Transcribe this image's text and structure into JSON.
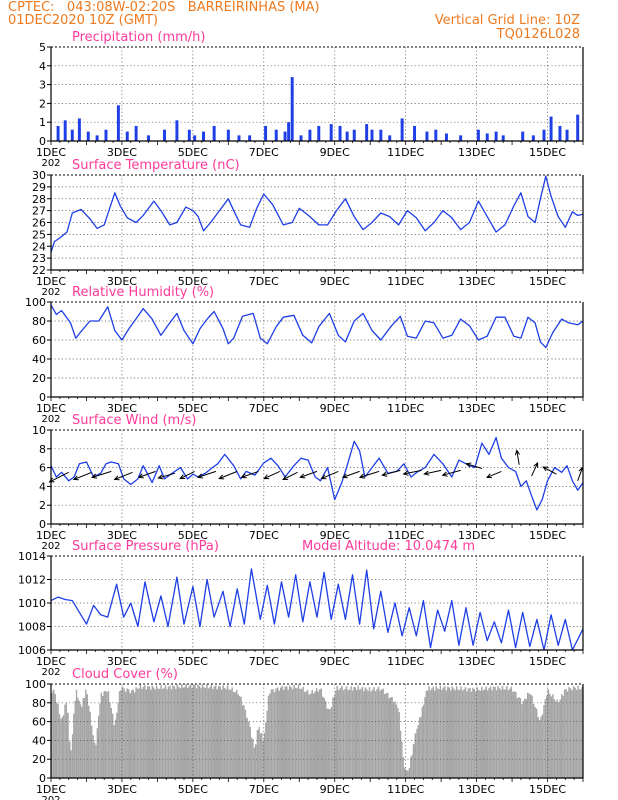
{
  "header": {
    "left_line1": "CPTEC:   043:08W-02:20S   BARREIRINHAS (MA)",
    "left_line2": "01DEC2020 10Z (GMT)",
    "right_line1": "Vertical Grid Line: 10Z",
    "right_line2": "TQ0126L028"
  },
  "colors": {
    "header": "#ee7a1f",
    "title": "#ff3a9a",
    "series": "#1f3fe6",
    "cloud": "#a6a6a6",
    "wind_arrow": "#000000"
  },
  "chart_data": [
    {
      "id": "precipitation",
      "type": "bar",
      "title": "Precipitation (mm/h)",
      "ylim": [
        0,
        5
      ],
      "yticks": [
        "0",
        "1",
        "2",
        "3",
        "4",
        "5"
      ],
      "xticks": [
        "1DEC",
        "3DEC",
        "5DEC",
        "7DEC",
        "9DEC",
        "11DEC",
        "13DEC",
        "15DEC"
      ],
      "xtick_sub": "202",
      "grid": true,
      "bar_width_hours": 2,
      "x": [
        1.2,
        1.4,
        1.6,
        1.8,
        2.05,
        2.3,
        2.55,
        2.9,
        3.15,
        3.4,
        3.75,
        4.2,
        4.55,
        4.9,
        5.05,
        5.3,
        5.6,
        6.0,
        6.3,
        6.6,
        7.05,
        7.35,
        7.6,
        7.7,
        7.8,
        8.05,
        8.3,
        8.55,
        8.9,
        9.15,
        9.35,
        9.55,
        9.9,
        10.05,
        10.3,
        10.55,
        10.9,
        11.25,
        11.6,
        11.85,
        12.15,
        12.55,
        13.05,
        13.3,
        13.55,
        13.75,
        14.3,
        14.6,
        14.9,
        15.1,
        15.35,
        15.55,
        15.85
      ],
      "values": [
        0.8,
        1.1,
        0.6,
        1.2,
        0.5,
        0.3,
        0.6,
        1.9,
        0.5,
        0.8,
        0.3,
        0.6,
        1.1,
        0.6,
        0.3,
        0.5,
        0.8,
        0.6,
        0.3,
        0.3,
        0.8,
        0.6,
        0.5,
        1.0,
        3.4,
        0.3,
        0.6,
        0.8,
        0.9,
        0.8,
        0.5,
        0.6,
        0.9,
        0.6,
        0.6,
        0.3,
        1.2,
        0.8,
        0.5,
        0.6,
        0.4,
        0.3,
        0.6,
        0.4,
        0.5,
        0.3,
        0.5,
        0.3,
        0.6,
        1.3,
        0.8,
        0.6,
        1.4
      ]
    },
    {
      "id": "temperature",
      "type": "line",
      "title": "Surface Temperature (nC)",
      "ylim": [
        22,
        30
      ],
      "yticks": [
        "22",
        "23",
        "24",
        "25",
        "26",
        "27",
        "28",
        "29",
        "30"
      ],
      "xticks": [
        "1DEC",
        "3DEC",
        "5DEC",
        "7DEC",
        "9DEC",
        "11DEC",
        "13DEC",
        "15DEC"
      ],
      "xtick_sub": "202",
      "grid": true,
      "x": [
        1.0,
        1.1,
        1.25,
        1.45,
        1.6,
        1.85,
        2.1,
        2.3,
        2.5,
        2.8,
        2.95,
        3.15,
        3.4,
        3.6,
        3.9,
        4.1,
        4.35,
        4.55,
        4.8,
        5.0,
        5.15,
        5.3,
        5.5,
        5.75,
        6.0,
        6.2,
        6.35,
        6.6,
        6.8,
        7.0,
        7.25,
        7.55,
        7.8,
        8.0,
        8.3,
        8.55,
        8.8,
        9.05,
        9.3,
        9.55,
        9.8,
        10.05,
        10.3,
        10.55,
        10.8,
        11.05,
        11.3,
        11.55,
        11.8,
        12.05,
        12.3,
        12.55,
        12.8,
        13.05,
        13.3,
        13.55,
        13.8,
        14.05,
        14.25,
        14.45,
        14.65,
        14.8,
        14.95,
        15.1,
        15.3,
        15.5,
        15.7,
        15.85,
        16.0
      ],
      "values": [
        23.5,
        24.4,
        24.7,
        25.2,
        26.8,
        27.1,
        26.3,
        25.5,
        25.8,
        28.5,
        27.4,
        26.4,
        26.0,
        26.6,
        27.8,
        27.0,
        25.8,
        26.0,
        27.3,
        27.0,
        26.5,
        25.3,
        26.0,
        27.0,
        28.0,
        26.7,
        25.8,
        25.6,
        27.2,
        28.4,
        27.5,
        25.8,
        26.0,
        27.2,
        26.5,
        25.8,
        25.8,
        27.0,
        28.0,
        26.5,
        25.4,
        26.0,
        26.8,
        26.5,
        25.8,
        27.0,
        26.4,
        25.3,
        26.0,
        27.0,
        26.4,
        25.4,
        26.0,
        27.8,
        26.5,
        25.2,
        25.8,
        27.4,
        28.5,
        26.5,
        26.0,
        28.0,
        29.9,
        28.2,
        26.5,
        25.6,
        26.9,
        26.6,
        26.7
      ]
    },
    {
      "id": "humidity",
      "type": "line",
      "title": "Relative Humidity (%)",
      "ylim": [
        0,
        100
      ],
      "yticks": [
        "0",
        "20",
        "40",
        "60",
        "80",
        "100"
      ],
      "xticks": [
        "1DEC",
        "3DEC",
        "5DEC",
        "7DEC",
        "9DEC",
        "11DEC",
        "13DEC",
        "15DEC"
      ],
      "xtick_sub": "202",
      "grid": true,
      "x": [
        1.0,
        1.15,
        1.3,
        1.55,
        1.7,
        1.85,
        2.1,
        2.35,
        2.6,
        2.8,
        3.0,
        3.2,
        3.45,
        3.6,
        3.85,
        4.1,
        4.35,
        4.55,
        4.75,
        5.0,
        5.2,
        5.4,
        5.6,
        5.85,
        6.0,
        6.15,
        6.4,
        6.7,
        6.9,
        7.1,
        7.35,
        7.55,
        7.85,
        8.1,
        8.35,
        8.55,
        8.85,
        9.1,
        9.3,
        9.55,
        9.8,
        10.05,
        10.3,
        10.6,
        10.85,
        11.05,
        11.3,
        11.55,
        11.8,
        12.05,
        12.3,
        12.55,
        12.8,
        13.05,
        13.3,
        13.55,
        13.8,
        14.05,
        14.25,
        14.45,
        14.65,
        14.8,
        14.95,
        15.15,
        15.4,
        15.6,
        15.85,
        16.0
      ],
      "values": [
        97,
        87,
        91,
        78,
        62,
        69,
        80,
        80,
        95,
        70,
        60,
        72,
        85,
        93,
        82,
        65,
        78,
        88,
        70,
        56,
        72,
        82,
        90,
        72,
        56,
        62,
        85,
        88,
        62,
        56,
        74,
        84,
        86,
        65,
        57,
        74,
        88,
        65,
        58,
        80,
        88,
        70,
        60,
        75,
        85,
        64,
        62,
        80,
        78,
        62,
        65,
        82,
        75,
        60,
        64,
        84,
        84,
        64,
        62,
        84,
        78,
        58,
        52,
        68,
        82,
        78,
        76,
        80
      ]
    },
    {
      "id": "wind",
      "type": "line",
      "title": "Surface Wind (m/s)",
      "ylim": [
        0,
        10
      ],
      "yticks": [
        "0",
        "2",
        "4",
        "6",
        "8",
        "10"
      ],
      "xticks": [
        "1DEC",
        "3DEC",
        "5DEC",
        "7DEC",
        "9DEC",
        "11DEC",
        "13DEC",
        "15DEC"
      ],
      "xtick_sub": "202",
      "grid": true,
      "x": [
        1.0,
        1.15,
        1.3,
        1.5,
        1.65,
        1.8,
        2.0,
        2.2,
        2.4,
        2.55,
        2.7,
        2.9,
        3.05,
        3.25,
        3.45,
        3.6,
        3.85,
        4.05,
        4.2,
        4.45,
        4.65,
        4.85,
        5.0,
        5.15,
        5.35,
        5.55,
        5.7,
        5.9,
        6.15,
        6.35,
        6.5,
        6.75,
        7.0,
        7.2,
        7.4,
        7.6,
        7.85,
        8.05,
        8.25,
        8.45,
        8.6,
        8.8,
        9.0,
        9.2,
        9.35,
        9.55,
        9.7,
        9.85,
        10.05,
        10.25,
        10.5,
        10.75,
        10.95,
        11.15,
        11.35,
        11.55,
        11.8,
        12.05,
        12.3,
        12.5,
        12.7,
        12.95,
        13.15,
        13.35,
        13.55,
        13.7,
        13.9,
        14.1,
        14.25,
        14.4,
        14.55,
        14.7,
        14.85,
        15.0,
        15.2,
        15.4,
        15.55,
        15.7,
        15.85,
        16.0
      ],
      "values": [
        6.2,
        5.0,
        5.5,
        4.6,
        5.0,
        6.4,
        6.6,
        5.0,
        5.4,
        6.4,
        6.6,
        6.4,
        4.8,
        4.2,
        4.8,
        6.2,
        4.4,
        6.2,
        4.8,
        5.5,
        6.0,
        4.8,
        5.3,
        5.0,
        5.4,
        6.0,
        6.4,
        7.4,
        6.2,
        4.8,
        5.6,
        5.2,
        6.5,
        7.0,
        6.2,
        5.0,
        6.2,
        7.0,
        6.8,
        5.0,
        4.6,
        6.0,
        2.6,
        4.4,
        6.2,
        8.8,
        7.8,
        5.0,
        6.0,
        7.0,
        5.4,
        5.6,
        6.4,
        5.0,
        5.6,
        6.0,
        7.4,
        6.4,
        5.0,
        6.8,
        6.4,
        6.0,
        8.6,
        7.4,
        9.2,
        7.0,
        6.0,
        5.6,
        4.0,
        4.6,
        3.0,
        1.5,
        2.6,
        4.6,
        6.0,
        5.5,
        6.2,
        4.6,
        3.6,
        4.4
      ],
      "arrows": [
        {
          "x": 1.5,
          "y": 5.5,
          "u": -1.6,
          "v": -0.8
        },
        {
          "x": 2.15,
          "y": 5.5,
          "u": -1.5,
          "v": -0.6
        },
        {
          "x": 2.7,
          "y": 5.6,
          "u": -1.6,
          "v": -0.5
        },
        {
          "x": 3.3,
          "y": 5.5,
          "u": -1.5,
          "v": -0.6
        },
        {
          "x": 3.95,
          "y": 5.6,
          "u": -1.4,
          "v": -0.5
        },
        {
          "x": 4.5,
          "y": 5.4,
          "u": -1.4,
          "v": -0.4
        },
        {
          "x": 5.05,
          "y": 5.6,
          "u": -1.2,
          "v": -0.6
        },
        {
          "x": 5.65,
          "y": 5.6,
          "u": -1.5,
          "v": -0.5
        },
        {
          "x": 6.25,
          "y": 5.6,
          "u": -1.5,
          "v": -0.6
        },
        {
          "x": 6.85,
          "y": 5.6,
          "u": -1.4,
          "v": -0.5
        },
        {
          "x": 7.45,
          "y": 5.6,
          "u": -1.3,
          "v": -0.6
        },
        {
          "x": 7.95,
          "y": 5.5,
          "u": -1.2,
          "v": -0.6
        },
        {
          "x": 8.5,
          "y": 5.6,
          "u": -1.4,
          "v": -0.5
        },
        {
          "x": 9.1,
          "y": 5.6,
          "u": -1.4,
          "v": -0.6
        },
        {
          "x": 9.7,
          "y": 5.6,
          "u": -1.4,
          "v": -0.5
        },
        {
          "x": 10.25,
          "y": 5.6,
          "u": -1.6,
          "v": -0.5
        },
        {
          "x": 10.85,
          "y": 5.7,
          "u": -1.5,
          "v": -0.4
        },
        {
          "x": 11.45,
          "y": 5.7,
          "u": -1.5,
          "v": -0.3
        },
        {
          "x": 12.0,
          "y": 5.7,
          "u": -1.4,
          "v": -0.3
        },
        {
          "x": 12.55,
          "y": 5.7,
          "u": -1.5,
          "v": -0.4
        },
        {
          "x": 13.15,
          "y": 5.9,
          "u": -1.3,
          "v": 0.4
        },
        {
          "x": 13.7,
          "y": 5.6,
          "u": -1.2,
          "v": -0.5
        },
        {
          "x": 14.2,
          "y": 6.3,
          "u": -0.2,
          "v": 1.2
        },
        {
          "x": 14.55,
          "y": 5.1,
          "u": 0.5,
          "v": 1.1
        },
        {
          "x": 15.25,
          "y": 5.3,
          "u": -1.1,
          "v": 0.6
        },
        {
          "x": 15.85,
          "y": 4.6,
          "u": 0.4,
          "v": 1.1
        }
      ]
    },
    {
      "id": "pressure",
      "type": "line",
      "title": "Surface Pressure (hPa)",
      "annotation": "Model Altitude: 10.0474 m",
      "ylim": [
        1006,
        1014
      ],
      "yticks": [
        "1006",
        "1008",
        "1010",
        "1012",
        "1014"
      ],
      "xticks": [
        "1DEC",
        "3DEC",
        "5DEC",
        "7DEC",
        "9DEC",
        "11DEC",
        "13DEC",
        "15DEC"
      ],
      "xtick_sub": "202",
      "grid": true,
      "x": [
        1.0,
        1.2,
        1.4,
        1.6,
        1.8,
        2.0,
        2.2,
        2.4,
        2.6,
        2.85,
        3.05,
        3.25,
        3.45,
        3.65,
        3.9,
        4.1,
        4.3,
        4.55,
        4.75,
        5.0,
        5.2,
        5.4,
        5.6,
        5.85,
        6.05,
        6.25,
        6.45,
        6.65,
        6.9,
        7.1,
        7.3,
        7.5,
        7.7,
        7.9,
        8.1,
        8.3,
        8.5,
        8.7,
        8.9,
        9.1,
        9.3,
        9.5,
        9.7,
        9.9,
        10.1,
        10.3,
        10.5,
        10.7,
        10.9,
        11.1,
        11.3,
        11.5,
        11.7,
        11.9,
        12.1,
        12.3,
        12.5,
        12.7,
        12.9,
        13.1,
        13.3,
        13.5,
        13.7,
        13.9,
        14.1,
        14.3,
        14.5,
        14.7,
        14.9,
        15.1,
        15.3,
        15.5,
        15.7,
        15.9,
        16.0
      ],
      "values": [
        1010.2,
        1010.5,
        1010.3,
        1010.2,
        1009.2,
        1008.2,
        1009.8,
        1009.0,
        1008.8,
        1011.6,
        1008.8,
        1010.0,
        1008.0,
        1011.8,
        1008.4,
        1010.6,
        1008.0,
        1012.2,
        1008.2,
        1011.4,
        1008.0,
        1012.0,
        1008.8,
        1011.0,
        1008.0,
        1011.2,
        1008.2,
        1012.9,
        1008.6,
        1011.5,
        1008.2,
        1011.8,
        1008.8,
        1012.4,
        1008.4,
        1011.8,
        1008.8,
        1012.6,
        1008.6,
        1011.6,
        1008.6,
        1012.4,
        1008.2,
        1012.8,
        1007.8,
        1011.0,
        1007.5,
        1010.0,
        1007.2,
        1009.6,
        1007.2,
        1010.2,
        1006.2,
        1009.4,
        1007.6,
        1010.2,
        1006.4,
        1009.6,
        1006.4,
        1009.2,
        1006.8,
        1008.4,
        1006.6,
        1009.4,
        1006.2,
        1009.2,
        1006.3,
        1008.6,
        1006.0,
        1009.0,
        1006.4,
        1008.6,
        1006.0,
        1007.2,
        1007.8
      ]
    },
    {
      "id": "cloud_cover",
      "type": "bar",
      "title": "Cloud Cover (%)",
      "ylim": [
        0,
        100
      ],
      "yticks": [
        "0",
        "20",
        "40",
        "60",
        "80",
        "100"
      ],
      "xticks": [
        "1DEC",
        "3DEC",
        "5DEC",
        "7DEC",
        "9DEC",
        "11DEC",
        "13DEC",
        "15DEC"
      ],
      "xtick_sub": "202",
      "grid": true,
      "resolution_hours": 1,
      "profile": [
        [
          1.0,
          90
        ],
        [
          1.1,
          92
        ],
        [
          1.3,
          60
        ],
        [
          1.45,
          85
        ],
        [
          1.55,
          20
        ],
        [
          1.7,
          94
        ],
        [
          1.85,
          75
        ],
        [
          2.0,
          95
        ],
        [
          2.25,
          30
        ],
        [
          2.4,
          88
        ],
        [
          2.6,
          94
        ],
        [
          2.8,
          55
        ],
        [
          2.95,
          96
        ],
        [
          3.3,
          92
        ],
        [
          3.5,
          97
        ],
        [
          4.0,
          96
        ],
        [
          4.5,
          97
        ],
        [
          5.0,
          98
        ],
        [
          5.5,
          97
        ],
        [
          6.0,
          96
        ],
        [
          6.3,
          90
        ],
        [
          6.5,
          70
        ],
        [
          6.6,
          55
        ],
        [
          6.75,
          30
        ],
        [
          6.85,
          55
        ],
        [
          7.0,
          40
        ],
        [
          7.15,
          92
        ],
        [
          7.5,
          96
        ],
        [
          8.0,
          97
        ],
        [
          8.3,
          90
        ],
        [
          8.6,
          95
        ],
        [
          8.85,
          70
        ],
        [
          9.05,
          96
        ],
        [
          9.4,
          95
        ],
        [
          9.6,
          96
        ],
        [
          10.0,
          94
        ],
        [
          10.3,
          95
        ],
        [
          10.6,
          85
        ],
        [
          10.8,
          75
        ],
        [
          10.95,
          15
        ],
        [
          11.05,
          3
        ],
        [
          11.2,
          30
        ],
        [
          11.3,
          50
        ],
        [
          11.45,
          70
        ],
        [
          11.6,
          95
        ],
        [
          12.0,
          96
        ],
        [
          12.5,
          95
        ],
        [
          13.0,
          94
        ],
        [
          13.5,
          96
        ],
        [
          14.0,
          95
        ],
        [
          14.3,
          80
        ],
        [
          14.5,
          92
        ],
        [
          14.8,
          60
        ],
        [
          15.0,
          93
        ],
        [
          15.3,
          80
        ],
        [
          15.5,
          94
        ],
        [
          15.8,
          96
        ],
        [
          16.0,
          95
        ]
      ]
    }
  ]
}
